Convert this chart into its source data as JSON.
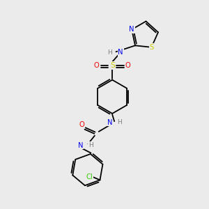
{
  "background_color": "#ebebeb",
  "atom_colors": {
    "C": "#000000",
    "N": "#0000ee",
    "O": "#ee0000",
    "S": "#cccc00",
    "Cl": "#33cc00",
    "H": "#808080"
  },
  "lw": 1.3,
  "fs": 7.2
}
